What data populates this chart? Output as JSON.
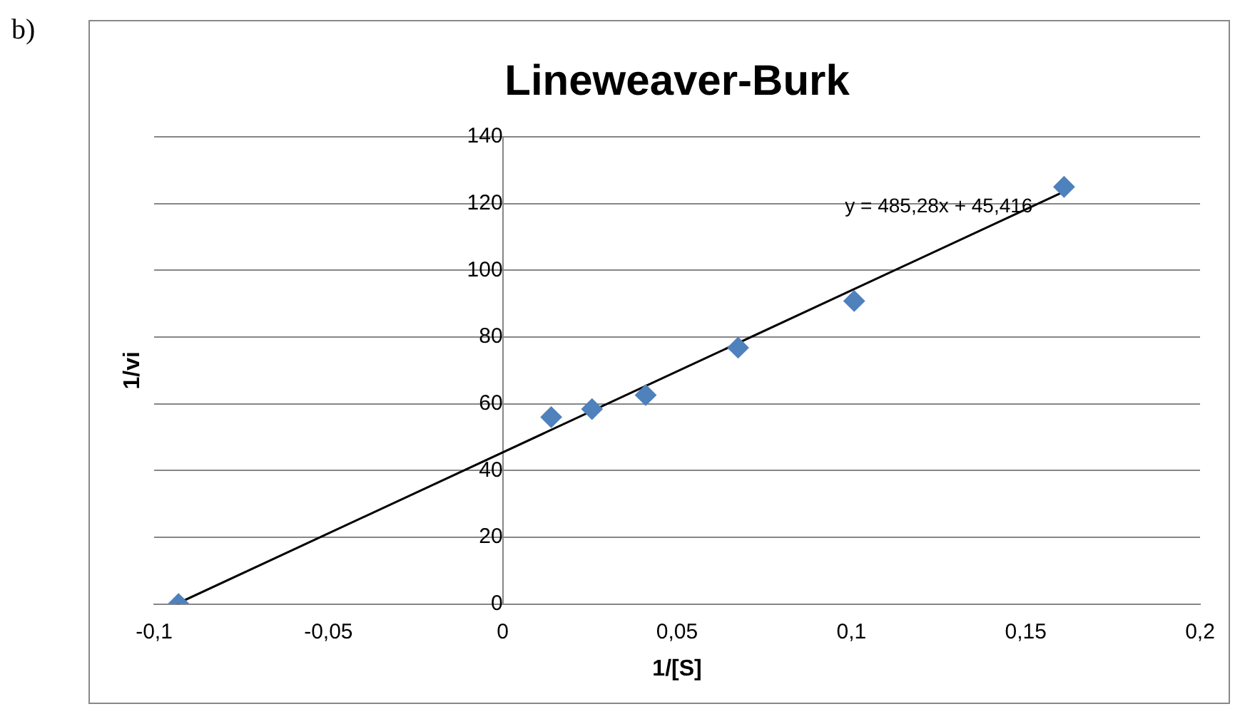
{
  "chart_data": {
    "type": "scatter",
    "title": "Lineweaver-Burk",
    "xlabel": "1/[S]",
    "ylabel": "1/vi",
    "annotations": [
      "b)",
      "y = 485,28x + 45,416"
    ],
    "series": [
      {
        "color": "#4f81bd",
        "marker": "diamond",
        "x": [
          -0.093,
          0.0139,
          0.0256,
          0.041,
          0.0675,
          0.1008,
          0.161
        ],
        "values": [
          0,
          56,
          58.4,
          62.6,
          76.8,
          90.8,
          125
        ]
      },
      {
        "type": "line",
        "color": "#000000",
        "marker": "none",
        "line_style": "solid",
        "x": [
          -0.0936,
          0.16
        ],
        "values": [
          0,
          123.1
        ]
      }
    ],
    "xlim": [
      -0.1,
      0.2
    ],
    "xticks": [
      {
        "value": -0.1,
        "label": "-0,1"
      },
      {
        "value": -0.05,
        "label": "-0,05"
      },
      0,
      {
        "value": 0.05,
        "label": "0,05"
      },
      {
        "value": 0.1,
        "label": "0,1"
      },
      {
        "value": 0.15,
        "label": "0,15"
      },
      {
        "value": 0.2,
        "label": "0,2"
      }
    ],
    "ylim": [
      0,
      140
    ],
    "yticks": [
      0,
      20,
      40,
      60,
      80,
      100,
      120,
      140
    ],
    "grid": "y",
    "legend": false
  }
}
